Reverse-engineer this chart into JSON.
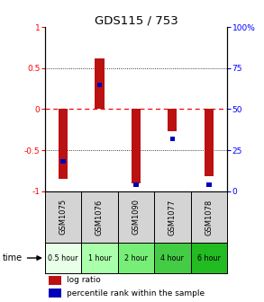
{
  "title": "GDS115 / 753",
  "samples": [
    "GSM1075",
    "GSM1076",
    "GSM1090",
    "GSM1077",
    "GSM1078"
  ],
  "time_labels": [
    "0.5 hour",
    "1 hour",
    "2 hour",
    "4 hour",
    "6 hour"
  ],
  "log_ratios": [
    -0.85,
    0.62,
    -0.9,
    -0.27,
    -0.82
  ],
  "percentile_ranks": [
    18,
    65,
    4,
    32,
    4
  ],
  "bar_color_red": "#bb1111",
  "bar_color_blue": "#0000bb",
  "ylim_left": [
    -1,
    1
  ],
  "ylim_right": [
    0,
    100
  ],
  "yticks_left": [
    -1,
    -0.5,
    0,
    0.5,
    1
  ],
  "yticks_right": [
    0,
    25,
    50,
    75,
    100
  ],
  "legend_log_ratio": "log ratio",
  "legend_percentile": "percentile rank within the sample",
  "time_colors": [
    "#e8ffe8",
    "#aaffaa",
    "#77ee77",
    "#44cc44",
    "#22bb22"
  ]
}
